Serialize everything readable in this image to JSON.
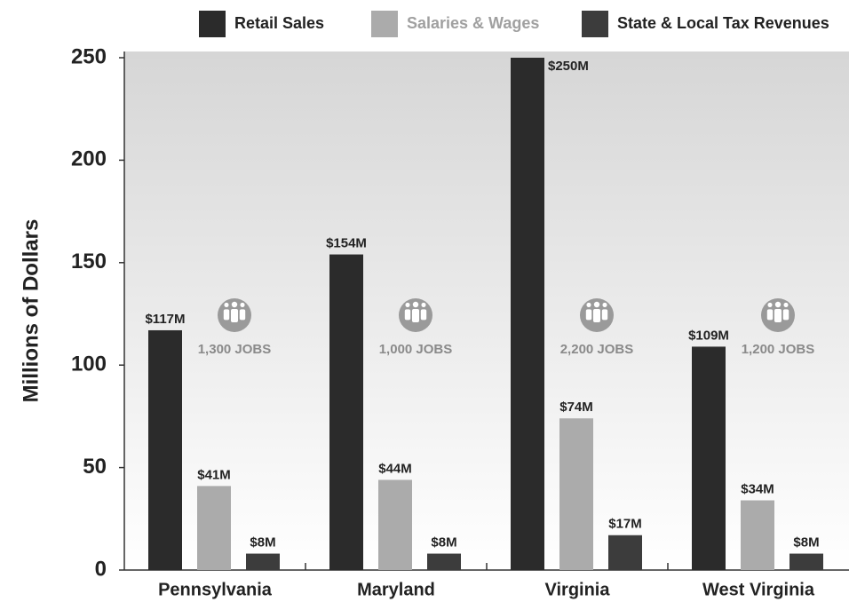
{
  "chart_data": {
    "type": "bar",
    "y_label": "Millions of Dollars",
    "categories": [
      "Pennsylvania",
      "Maryland",
      "Virginia",
      "West Virginia"
    ],
    "series": [
      {
        "name": "Retail Sales",
        "color": "#2b2b2b",
        "values": [
          117,
          154,
          250,
          109
        ],
        "value_labels": [
          "$117M",
          "$154M",
          "$250M",
          "$109M"
        ]
      },
      {
        "name": "Salaries & Wages",
        "color": "#ababab",
        "values": [
          41,
          44,
          74,
          34
        ],
        "value_labels": [
          "$41M",
          "$44M",
          "$74M",
          "$34M"
        ]
      },
      {
        "name": "State & Local Tax Revenues",
        "color": "#3c3c3c",
        "values": [
          8,
          8,
          17,
          8
        ],
        "value_labels": [
          "$8M",
          "$8M",
          "$17M",
          "$8M"
        ]
      }
    ],
    "jobs_labels": [
      "1,300 JOBS",
      "1,000 JOBS",
      "2,200 JOBS",
      "1,200 JOBS"
    ],
    "ylim": [
      0,
      250
    ],
    "yticks": [
      0,
      50,
      100,
      150,
      200,
      250
    ],
    "legend": "top-right"
  }
}
